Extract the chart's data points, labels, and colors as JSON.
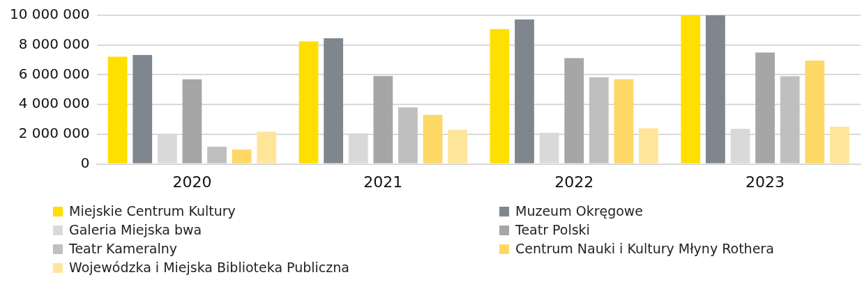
{
  "chart_data": {
    "type": "bar",
    "categories": [
      "2020",
      "2021",
      "2022",
      "2023"
    ],
    "series": [
      {
        "name": "Miejskie Centrum Kultury",
        "color": "#ffdf00",
        "values": [
          7220000,
          8240000,
          9080000,
          10000000
        ]
      },
      {
        "name": "Muzeum Okręgowe",
        "color": "#7f868d",
        "values": [
          7330000,
          8450000,
          9720000,
          10000000
        ]
      },
      {
        "name": "Galeria Miejska bwa",
        "color": "#d9d9d9",
        "values": [
          1970000,
          2060000,
          2100000,
          2370000
        ]
      },
      {
        "name": "Teatr Polski",
        "color": "#a6a6a6",
        "values": [
          5690000,
          5910000,
          7120000,
          7490000
        ]
      },
      {
        "name": "Teatr Kameralny",
        "color": "#bfbfbf",
        "values": [
          1160000,
          3810000,
          5830000,
          5900000
        ]
      },
      {
        "name": "Centrum Nauki i Kultury Młyny Rothera",
        "color": "#fdd866",
        "values": [
          980000,
          3310000,
          5710000,
          6960000
        ]
      },
      {
        "name": "Wojewódzka i Miejska Biblioteka Publiczna",
        "color": "#fee599",
        "values": [
          2170000,
          2300000,
          2400000,
          2510000
        ]
      }
    ],
    "ylim": [
      0,
      10000000
    ],
    "yticks": [
      {
        "value": 0,
        "label": "0"
      },
      {
        "value": 2000000,
        "label": "2 000 000"
      },
      {
        "value": 4000000,
        "label": "4 000 000"
      },
      {
        "value": 6000000,
        "label": "6 000 000"
      },
      {
        "value": 8000000,
        "label": "8 000 000"
      },
      {
        "value": 10000000,
        "label": "10 000 000"
      }
    ],
    "grid": "y",
    "legend": "bottom"
  }
}
